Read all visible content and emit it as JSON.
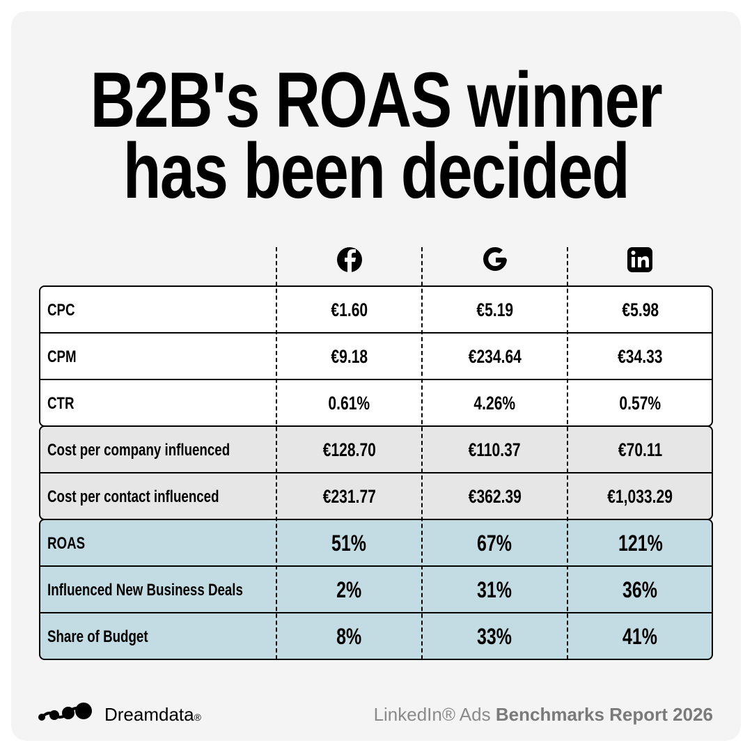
{
  "header": {
    "title_lines": [
      "B2B's ROAS winner",
      "has been decided"
    ]
  },
  "table": {
    "groups": [
      {
        "rows": [
          [
            "CPC",
            "€1.60",
            "€5.19",
            "€5.98"
          ],
          [
            "CPM",
            "€9.18",
            "€234.64",
            "€34.33"
          ],
          [
            "CTR",
            "0.61%",
            "4.26%",
            "0.57%"
          ]
        ]
      },
      {
        "rows": [
          [
            "Cost per company influenced",
            "€128.70",
            "€110.37",
            "€70.11"
          ],
          [
            "Cost per contact influenced",
            "€231.77",
            "€362.39",
            "€1,033.29"
          ]
        ]
      },
      {
        "rows": [
          [
            "ROAS",
            "51%",
            "67%",
            "121%"
          ],
          [
            "Influenced New Business Deals",
            "2%",
            "31%",
            "36%"
          ],
          [
            "Share of Budget",
            "8%",
            "33%",
            "41%"
          ]
        ]
      }
    ]
  },
  "footer": {
    "brand": "Dreamdata",
    "brand_mark": "®",
    "report_prefix": "LinkedIn® Ads",
    "report_title": "Benchmarks Report 2026"
  }
}
